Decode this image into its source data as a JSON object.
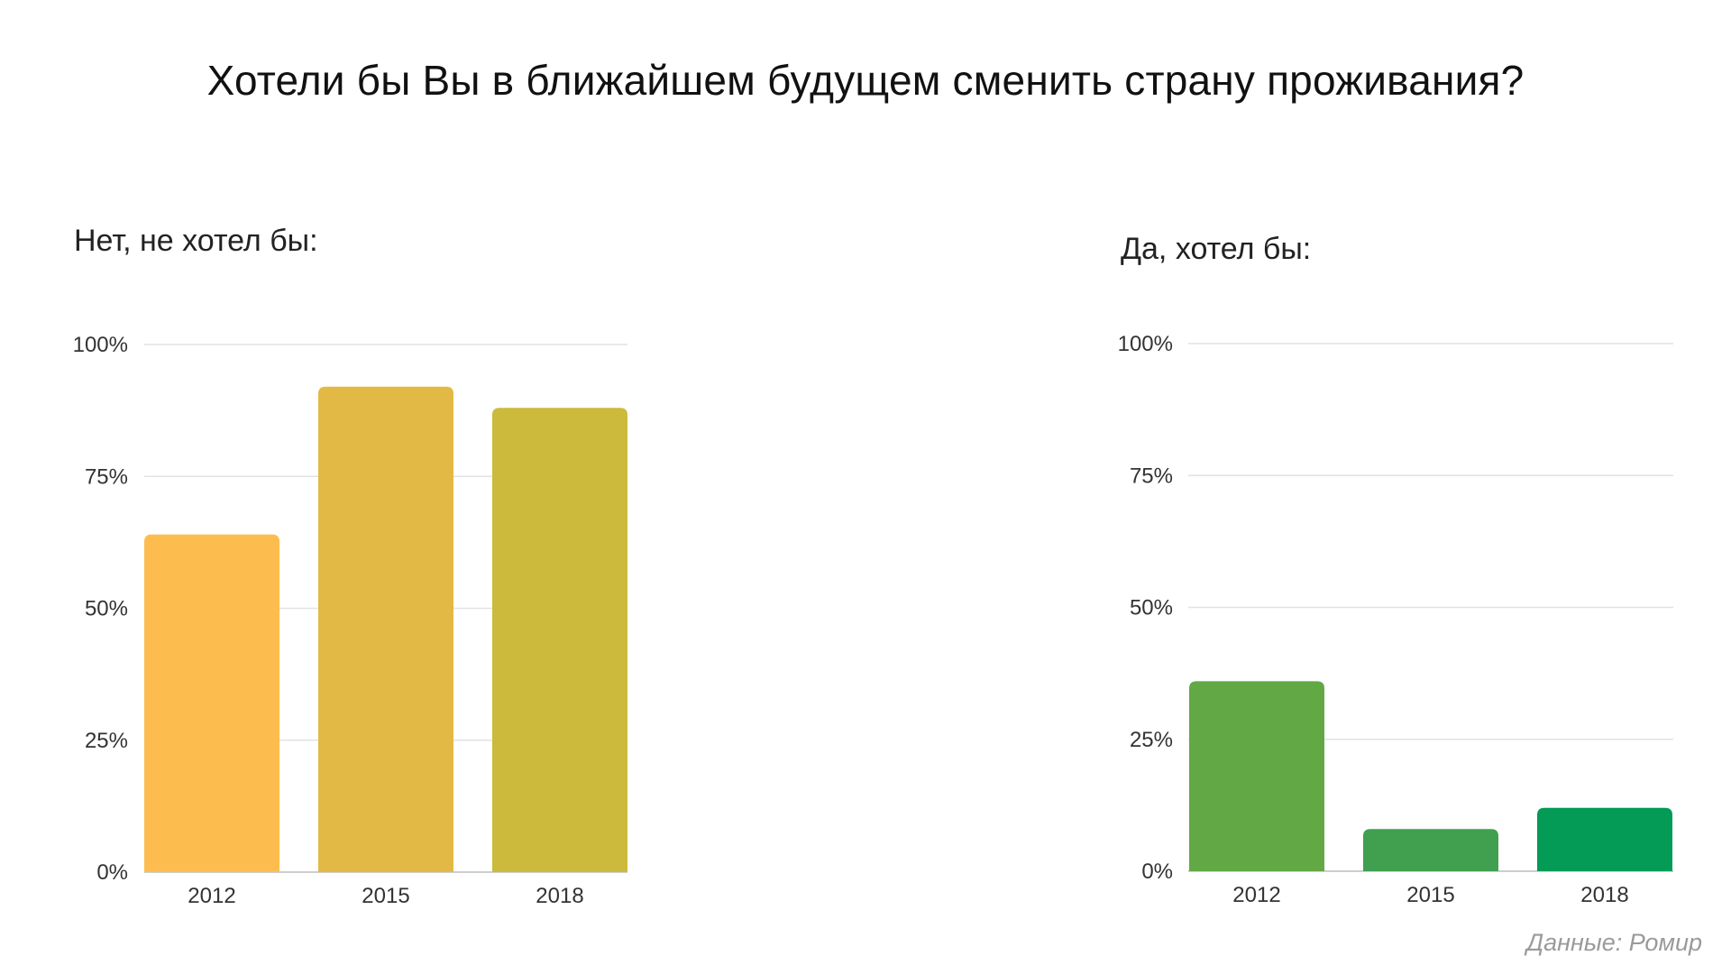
{
  "title": "Хотели бы Вы в ближайшем будущем сменить страну проживания?",
  "source": "Данные: Ромир",
  "chart_data": [
    {
      "type": "bar",
      "title": "Нет, не хотел бы:",
      "categories": [
        "2012",
        "2015",
        "2018"
      ],
      "values": [
        64,
        92,
        88
      ],
      "ylim": [
        0,
        100
      ],
      "yticks": [
        "0%",
        "25%",
        "50%",
        "75%",
        "100%"
      ],
      "xlabel": "",
      "ylabel": "",
      "grid": true,
      "colors": [
        "#FDBD4E",
        "#E3B945",
        "#CBBA3B"
      ]
    },
    {
      "type": "bar",
      "title": "Да, хотел бы:",
      "categories": [
        "2012",
        "2015",
        "2018"
      ],
      "values": [
        36,
        8,
        12
      ],
      "ylim": [
        0,
        100
      ],
      "yticks": [
        "0%",
        "25%",
        "50%",
        "75%",
        "100%"
      ],
      "xlabel": "",
      "ylabel": "",
      "grid": true,
      "colors": [
        "#62A844",
        "#40A04F",
        "#039B56"
      ]
    }
  ]
}
